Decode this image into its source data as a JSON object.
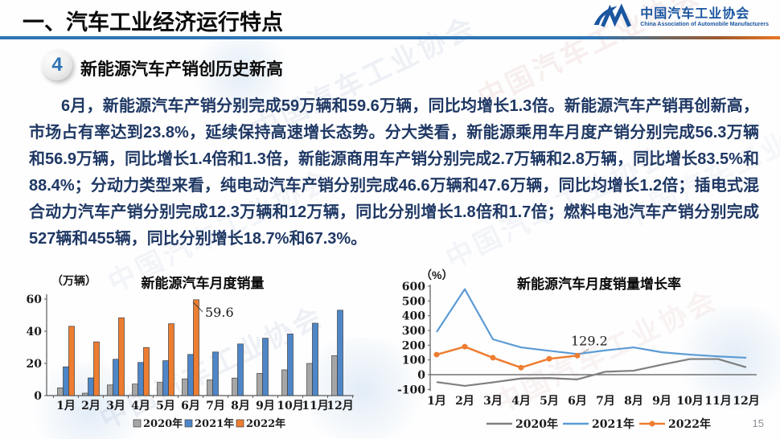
{
  "header": {
    "title": "一、汽车工业经济运行特点",
    "logo": {
      "cn": "中国汽车工业协会",
      "en": "China Association of Automobile Manufacturers"
    }
  },
  "section": {
    "number": "4",
    "heading": "新能源汽车产销创历史新高"
  },
  "paragraph": "6月，新能源汽车产销分别完成59万辆和59.6万辆，同比均增长1.3倍。新能源汽车产销再创新高，市场占有率达到23.8%，延续保持高速增长态势。分大类看，新能源乘用车月度产销分别完成56.3万辆和56.9万辆，同比增长1.4倍和1.3倍，新能源商用车产销分别完成2.7万辆和2.8万辆，同比增长83.5%和88.4%；分动力类型来看，纯电动汽车产销分别完成46.6万辆和47.6万辆，同比均增长1.2倍；插电式混合动力汽车产销分别完成12.3万辆和12万辆，同比分别增长1.8倍和1.7倍；燃料电池汽车产销分别完成527辆和455辆，同比分别增长18.7%和67.3%。",
  "watermark": {
    "text": "中国汽车工业协会"
  },
  "page_number": "15",
  "colors": {
    "accent_blue": "#2E74B5",
    "logo_blue": "#1A56A0",
    "series_gray": "#A6A6A6",
    "series_blue": "#4E86C8",
    "series_orange": "#ED7D31",
    "line_gray": "#7F7F7F",
    "line_blue": "#5B9BD5",
    "line_orange": "#ED7D31",
    "axis": "#595959",
    "text_navy": "#1F3864"
  },
  "chart_data": [
    {
      "type": "bar",
      "title": "新能源汽车月度销量",
      "unit": "（万辆）",
      "categories": [
        "1月",
        "2月",
        "3月",
        "4月",
        "5月",
        "6月",
        "7月",
        "8月",
        "9月",
        "10月",
        "11月",
        "12月"
      ],
      "ylim": [
        0,
        60
      ],
      "yticks": [
        0,
        20,
        40,
        60
      ],
      "grid": false,
      "legend_position": "bottom",
      "series": [
        {
          "name": "2020年",
          "color_key": "series_gray",
          "values": [
            4.8,
            1.5,
            6.6,
            7.2,
            8.2,
            10.4,
            9.8,
            10.9,
            13.8,
            16.0,
            20.0,
            24.8
          ]
        },
        {
          "name": "2021年",
          "color_key": "series_blue",
          "values": [
            17.9,
            11.0,
            22.6,
            20.6,
            21.7,
            25.6,
            27.1,
            32.1,
            35.7,
            38.3,
            45.0,
            53.1
          ]
        },
        {
          "name": "2022年",
          "color_key": "series_orange",
          "values": [
            43.1,
            33.4,
            48.4,
            29.9,
            44.7,
            59.6
          ]
        }
      ],
      "annotation": {
        "text": "59.6",
        "series_index": 2,
        "point_index": 5
      }
    },
    {
      "type": "line",
      "title": "新能源汽车月度销量增长率",
      "unit": "（%）",
      "categories": [
        "1月",
        "2月",
        "3月",
        "4月",
        "5月",
        "6月",
        "7月",
        "8月",
        "9月",
        "10月",
        "11月",
        "12月"
      ],
      "ylim": [
        -100,
        600
      ],
      "yticks": [
        600,
        500,
        400,
        300,
        200,
        100,
        0,
        -100
      ],
      "grid": false,
      "legend_position": "bottom",
      "series": [
        {
          "name": "2020年",
          "color_key": "line_gray",
          "marker": false,
          "values": [
            -50,
            -76,
            -52,
            -26,
            -23,
            -32,
            20,
            27,
            68,
            106,
            106,
            50
          ]
        },
        {
          "name": "2021年",
          "color_key": "line_blue",
          "marker": false,
          "values": [
            290,
            580,
            240,
            185,
            162,
            140,
            165,
            185,
            152,
            136,
            124,
            115
          ]
        },
        {
          "name": "2022年",
          "color_key": "line_orange",
          "marker": true,
          "values": [
            136,
            190,
            115,
            48,
            108,
            129.2
          ]
        }
      ],
      "annotation": {
        "text": "129.2",
        "series_index": 2,
        "point_index": 5
      }
    }
  ]
}
